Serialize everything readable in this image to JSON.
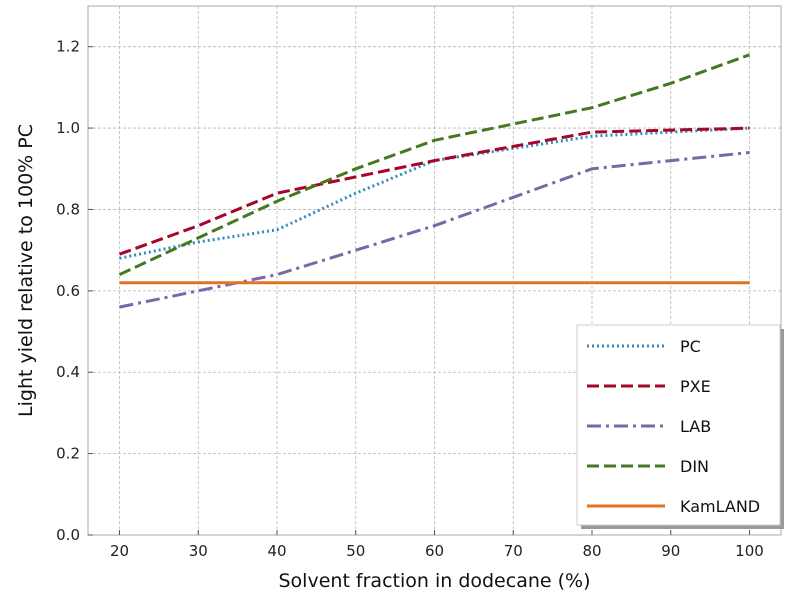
{
  "chart_data": {
    "type": "line",
    "title": "",
    "xlabel": "Solvent fraction in dodecane (%)",
    "ylabel": "Light yield relative to 100% PC",
    "xlim": [
      16,
      104
    ],
    "ylim": [
      0,
      1.3
    ],
    "xticks": [
      20,
      30,
      40,
      50,
      60,
      70,
      80,
      90,
      100
    ],
    "yticks": [
      0.0,
      0.2,
      0.4,
      0.6,
      0.8,
      1.0,
      1.2
    ],
    "xtick_labels": [
      "20",
      "30",
      "40",
      "50",
      "60",
      "70",
      "80",
      "90",
      "100"
    ],
    "ytick_labels": [
      "0.0",
      "0.2",
      "0.4",
      "0.6",
      "0.8",
      "1.0",
      "1.2"
    ],
    "grid": true,
    "legend_position": "lower-right",
    "series": [
      {
        "name": "PC",
        "color": "#348abd",
        "dash": "dotted",
        "x": [
          20,
          30,
          40,
          50,
          60,
          70,
          80,
          90,
          100
        ],
        "y": [
          0.68,
          0.72,
          0.75,
          0.84,
          0.92,
          0.95,
          0.98,
          0.99,
          1.0
        ]
      },
      {
        "name": "PXE",
        "color": "#a60628",
        "dash": "dashed",
        "x": [
          20,
          30,
          40,
          50,
          60,
          70,
          80,
          90,
          100
        ],
        "y": [
          0.69,
          0.76,
          0.84,
          0.88,
          0.92,
          0.955,
          0.99,
          0.995,
          1.0
        ]
      },
      {
        "name": "LAB",
        "color": "#7a68a6",
        "dash": "dashdot",
        "x": [
          20,
          30,
          40,
          50,
          60,
          70,
          80,
          90,
          100
        ],
        "y": [
          0.56,
          0.6,
          0.64,
          0.7,
          0.76,
          0.83,
          0.9,
          0.92,
          0.94
        ]
      },
      {
        "name": "DIN",
        "color": "#467821",
        "dash": "dashed",
        "x": [
          20,
          30,
          40,
          50,
          60,
          70,
          80,
          90,
          100
        ],
        "y": [
          0.64,
          0.73,
          0.82,
          0.9,
          0.97,
          1.01,
          1.05,
          1.11,
          1.18
        ]
      },
      {
        "name": "KamLAND",
        "color": "#e37222",
        "dash": "solid",
        "x": [
          20,
          100
        ],
        "y": [
          0.62,
          0.62
        ]
      }
    ]
  }
}
